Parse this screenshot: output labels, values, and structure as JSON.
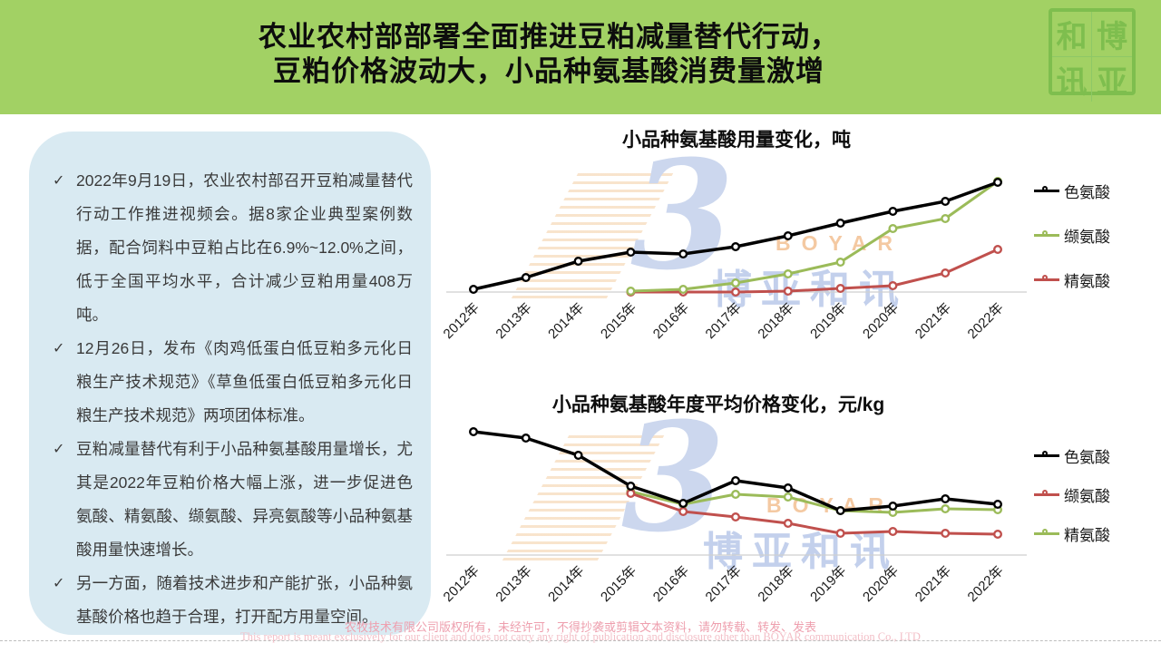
{
  "header": {
    "title_line1": "农业农村部部署全面推进豆粕减量替代行动，",
    "title_line2": "豆粕价格波动大，小品种氨基酸消费量激增",
    "logo": {
      "name": "博亚和讯",
      "chars": [
        "和",
        "博",
        "讯",
        "亚"
      ]
    }
  },
  "check_icon": "✓",
  "info_box": {
    "items": [
      {
        "text": "2022年9月19日，农业农村部召开豆粕减量替代行动工作推进视频会。据8家企业典型案例数据，配合饲料中豆粕占比在6.9%~12.0%之间，低于全国平均水平，合计减少豆粕用量408万吨。"
      },
      {
        "text": "12月26日，发布《肉鸡低蛋白低豆粕多元化日粮生产技术规范》《草鱼低蛋白低豆粕多元化日粮生产技术规范》两项团体标准。"
      },
      {
        "text": "豆粕减量替代有利于小品种氨基酸用量增长，尤其是2022年豆粕价格大幅上涨，进一步促进色氨酸、精氨酸、缬氨酸、异亮氨酸等小品种氨基酸用量快速增长。"
      },
      {
        "text": "另一方面，随着技术进步和产能扩张，小品种氨基酸价格也趋于合理，打开配方用量空间。"
      }
    ]
  },
  "chart_data": [
    {
      "type": "line",
      "title": "小品种氨基酸用量变化，吨",
      "x": [
        "2012年",
        "2013年",
        "2014年",
        "2015年",
        "2016年",
        "2017年",
        "2018年",
        "2019年",
        "2020年",
        "2021年",
        "2022年"
      ],
      "xlabel": "",
      "ylabel": "",
      "y_axis": "none (no tick labels shown; values are relative estimates from line heights)",
      "grid": false,
      "legend_position": "right",
      "series": [
        {
          "name": "色氨酸",
          "color": "#000000",
          "values": [
            3,
            16,
            34,
            44,
            42,
            50,
            62,
            76,
            89,
            100,
            121
          ]
        },
        {
          "name": "缬氨酸",
          "color": "#9bbb59",
          "values": [
            null,
            null,
            null,
            1,
            3,
            10,
            20,
            33,
            70,
            81,
            122
          ]
        },
        {
          "name": "精氨酸",
          "color": "#c0504d",
          "values": [
            null,
            null,
            null,
            0,
            0,
            0,
            1,
            4,
            7,
            21,
            47
          ]
        }
      ]
    },
    {
      "type": "line",
      "title": "小品种氨基酸年度平均价格变化，元/kg",
      "x": [
        "2012年",
        "2013年",
        "2014年",
        "2015年",
        "2016年",
        "2017年",
        "2018年",
        "2019年",
        "2020年",
        "2021年",
        "2022年"
      ],
      "xlabel": "",
      "ylabel": "",
      "y_axis": "none (no tick labels shown; values are relative estimates from line heights)",
      "grid": false,
      "legend_position": "right",
      "series": [
        {
          "name": "色氨酸",
          "color": "#000000",
          "values": [
            136,
            129,
            110,
            76,
            57,
            82,
            74,
            49,
            54,
            62,
            56
          ]
        },
        {
          "name": "缬氨酸",
          "color": "#c0504d",
          "values": [
            null,
            null,
            null,
            68,
            48,
            42,
            35,
            24,
            26,
            24,
            23
          ]
        },
        {
          "name": "精氨酸",
          "color": "#9bbb59",
          "values": [
            null,
            null,
            null,
            70,
            56,
            67,
            64,
            49,
            47,
            51,
            50
          ]
        }
      ]
    }
  ],
  "watermark": {
    "boyar": "BOYAR",
    "cn": "博亚和讯",
    "bird_glyph": "3"
  },
  "footer": {
    "line_cn": "农牧技术有限公司版权所有，未经许可，不得抄袭或剪辑文本资料，请勿转载、转发、发表",
    "line_en": "This report is meant exclusively for our client and does not carry any right of publication and disclosure other than BOYAR communication Co., LTD"
  },
  "colors": {
    "header_bg": "#a2d164",
    "seal_green": "#7ebe4e",
    "info_box_bg": "#d9eaf2",
    "body_text": "#3a3a3a",
    "axis_line": "#cfcfcf",
    "series_black": "#000000",
    "series_green": "#9bbb59",
    "series_red": "#c0504d",
    "watermark_blue": "#ccd7ee",
    "watermark_orange": "#f4c9a2",
    "footer_pink": "#ee9fae"
  }
}
